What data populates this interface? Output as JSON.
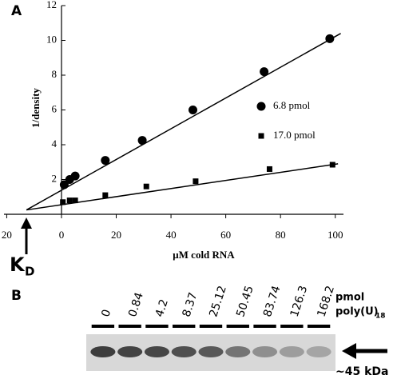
{
  "chart_data": {
    "type": "scatter",
    "panel_label": "A",
    "y_label": "1/density",
    "x_label": "μM cold RNA",
    "xlim": [
      -21,
      103
    ],
    "ylim": [
      0,
      12
    ],
    "xticks": [
      {
        "value": -20,
        "label": "20"
      },
      0,
      20,
      40,
      60,
      80,
      100
    ],
    "yticks": [
      2,
      4,
      6,
      8,
      10,
      12
    ],
    "series": [
      {
        "name": "6.8 pmol",
        "marker": "circle",
        "color": "#000000",
        "x": [
          1,
          3,
          5,
          16,
          29.5,
          48,
          74,
          98
        ],
        "values": [
          1.7,
          2.0,
          2.2,
          3.1,
          4.25,
          6.0,
          8.2,
          10.1
        ]
      },
      {
        "name": "17.0 pmol",
        "marker": "square",
        "color": "#000000",
        "x": [
          0.5,
          3,
          5,
          16,
          31,
          49,
          76,
          99
        ],
        "values": [
          0.7,
          0.8,
          0.8,
          1.1,
          1.6,
          1.9,
          2.6,
          2.85
        ]
      }
    ],
    "fit_lines": [
      {
        "x": [
          -12.8,
          102
        ],
        "values": [
          0.25,
          10.4
        ]
      },
      {
        "x": [
          -12.8,
          101
        ],
        "values": [
          0.25,
          2.9
        ]
      }
    ],
    "kd_label": {
      "main": "K",
      "sub": "D"
    }
  },
  "panel_b": {
    "panel_label": "B",
    "lanes": [
      "0",
      "0.84",
      "4.2",
      "8.37",
      "25.12",
      "50.45",
      "83.74",
      "126.3",
      "168.2"
    ],
    "unit": "pmol",
    "unit_line2": "poly(U)",
    "unit_sub": "18",
    "band_label": "~45 kDa"
  }
}
